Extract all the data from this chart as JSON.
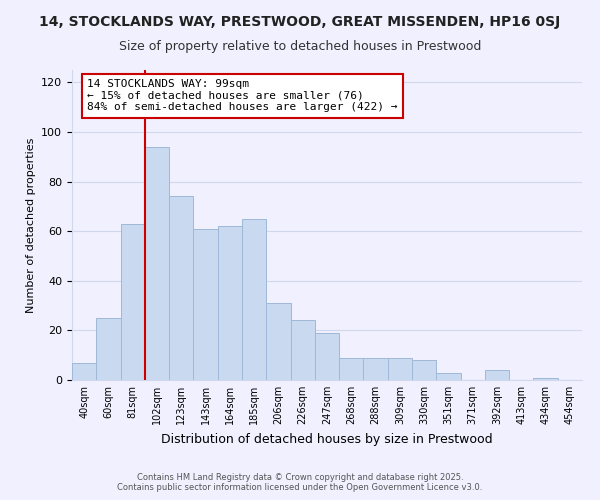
{
  "title": "14, STOCKLANDS WAY, PRESTWOOD, GREAT MISSENDEN, HP16 0SJ",
  "subtitle": "Size of property relative to detached houses in Prestwood",
  "xlabel": "Distribution of detached houses by size in Prestwood",
  "ylabel": "Number of detached properties",
  "bar_values": [
    7,
    25,
    63,
    94,
    74,
    61,
    62,
    65,
    31,
    24,
    19,
    9,
    9,
    9,
    8,
    3,
    0,
    4,
    0,
    1,
    0
  ],
  "bin_labels": [
    "40sqm",
    "60sqm",
    "81sqm",
    "102sqm",
    "123sqm",
    "143sqm",
    "164sqm",
    "185sqm",
    "206sqm",
    "226sqm",
    "247sqm",
    "268sqm",
    "288sqm",
    "309sqm",
    "330sqm",
    "351sqm",
    "371sqm",
    "392sqm",
    "413sqm",
    "434sqm",
    "454sqm"
  ],
  "bar_color": "#c9d9f0",
  "bar_edge_color": "#a0b8d8",
  "vline_x_index": 3,
  "vline_color": "#cc0000",
  "annotation_line1": "14 STOCKLANDS WAY: 99sqm",
  "annotation_line2": "← 15% of detached houses are smaller (76)",
  "annotation_line3": "84% of semi-detached houses are larger (422) →",
  "annotation_box_color": "#ffffff",
  "annotation_box_edge": "#cc0000",
  "ylim": [
    0,
    125
  ],
  "yticks": [
    0,
    20,
    40,
    60,
    80,
    100,
    120
  ],
  "footer1": "Contains HM Land Registry data © Crown copyright and database right 2025.",
  "footer2": "Contains public sector information licensed under the Open Government Licence v3.0.",
  "bg_color": "#f0f0ff",
  "grid_color": "#d0d8ec",
  "title_fontsize": 10,
  "subtitle_fontsize": 9
}
